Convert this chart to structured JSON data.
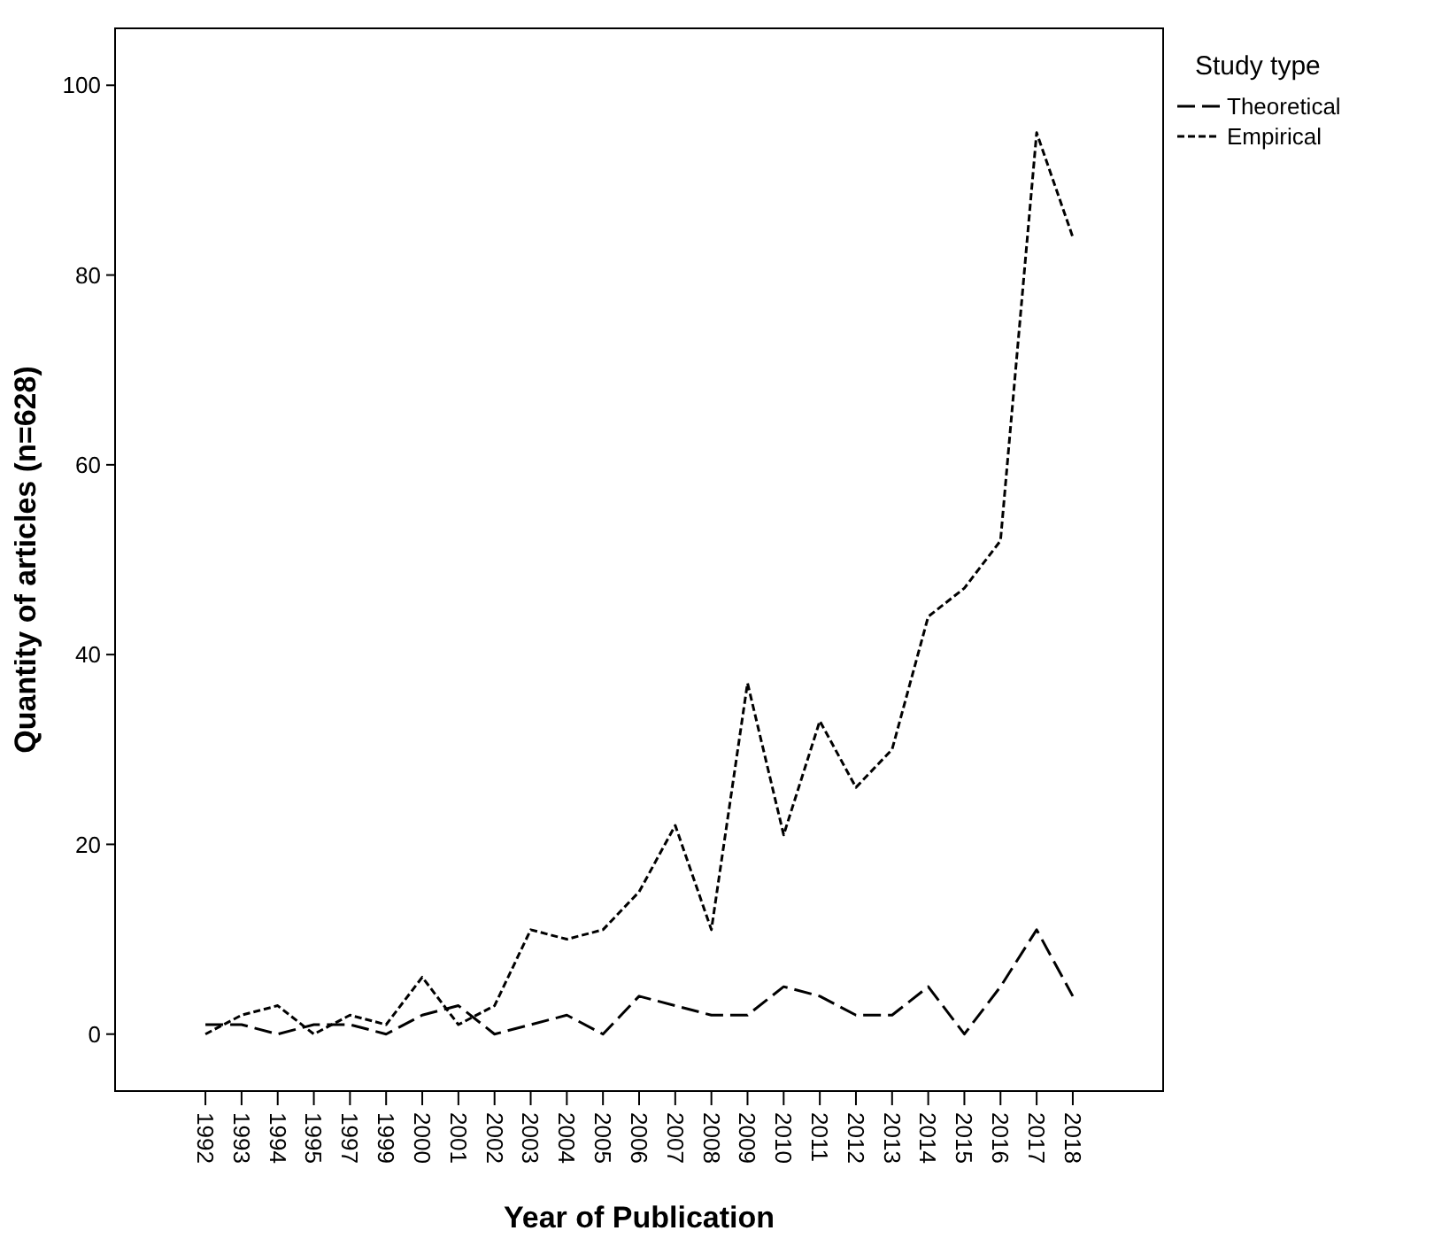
{
  "chart_data": {
    "type": "line",
    "xlabel": "Year of Publication",
    "ylabel": "Quantity of articles (n=628)",
    "legend_title": "Study type",
    "legend": "top right",
    "grid": false,
    "marker": "none",
    "categories": [
      "1992",
      "1993",
      "1994",
      "1995",
      "1997",
      "1999",
      "2000",
      "2001",
      "2002",
      "2003",
      "2004",
      "2005",
      "2006",
      "2007",
      "2008",
      "2009",
      "2010",
      "2011",
      "2012",
      "2013",
      "2014",
      "2015",
      "2016",
      "2017",
      "2018"
    ],
    "ylim": [
      -6,
      106
    ],
    "yticks": [
      0,
      20,
      40,
      60,
      80,
      100
    ],
    "series": [
      {
        "name": "Theoretical",
        "color": "#000000",
        "line_style": "dashed",
        "values": [
          1,
          1,
          0,
          1,
          1,
          0,
          2,
          3,
          0,
          1,
          2,
          0,
          4,
          3,
          2,
          2,
          5,
          4,
          2,
          2,
          5,
          0,
          5,
          11,
          4
        ]
      },
      {
        "name": "Empirical",
        "color": "#000000",
        "line_style": "dotted",
        "values": [
          0,
          2,
          3,
          0,
          2,
          1,
          6,
          1,
          3,
          11,
          10,
          11,
          15,
          22,
          11,
          37,
          21,
          33,
          26,
          30,
          44,
          47,
          52,
          95,
          84
        ]
      }
    ]
  }
}
